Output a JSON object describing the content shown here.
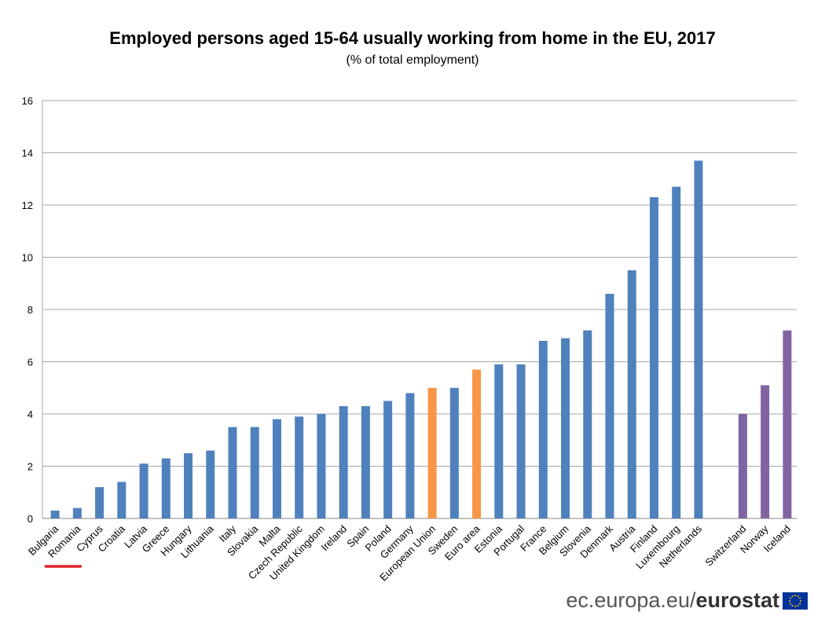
{
  "chart_data": {
    "type": "bar",
    "title": "Employed persons aged 15-64 usually working from home in the EU, 2017",
    "subtitle": "(% of total employment)",
    "xlabel": "",
    "ylabel": "",
    "ylim": [
      0,
      16
    ],
    "yticks": [
      0,
      2,
      4,
      6,
      8,
      10,
      12,
      14,
      16
    ],
    "grid": true,
    "categories": [
      "Bulgaria",
      "Romania",
      "Cyprus",
      "Croatia",
      "Latvia",
      "Greece",
      "Hungary",
      "Lithuania",
      "Italy",
      "Slovakia",
      "Malta",
      "Czech Republic",
      "United Kingdom",
      "Ireland",
      "Spain",
      "Poland",
      "Germany",
      "European Union",
      "Sweden",
      "Euro area",
      "Estonia",
      "Portugal",
      "France",
      "Belgium",
      "Slovenia",
      "Denmark",
      "Austria",
      "Finland",
      "Luxembourg",
      "Netherlands",
      "",
      "Switzerland",
      "Norway",
      "Iceland"
    ],
    "values": [
      0.3,
      0.4,
      1.2,
      1.4,
      2.1,
      2.3,
      2.5,
      2.6,
      3.5,
      3.5,
      3.8,
      3.9,
      4.0,
      4.3,
      4.3,
      4.5,
      4.8,
      5.0,
      5.0,
      5.7,
      5.9,
      5.9,
      6.8,
      6.9,
      7.2,
      8.6,
      9.5,
      12.3,
      12.7,
      13.7,
      null,
      4.0,
      5.1,
      7.2
    ],
    "groups": [
      "member",
      "member",
      "member",
      "member",
      "member",
      "member",
      "member",
      "member",
      "member",
      "member",
      "member",
      "member",
      "member",
      "member",
      "member",
      "member",
      "member",
      "aggregate",
      "member",
      "aggregate",
      "member",
      "member",
      "member",
      "member",
      "member",
      "member",
      "member",
      "member",
      "member",
      "member",
      "gap",
      "non-eu",
      "non-eu",
      "non-eu"
    ],
    "colors": {
      "member": "#4f81bd",
      "aggregate": "#f79646",
      "non-eu": "#8064a2",
      "grid": "#a6a6a6",
      "highlight": "#e3242b"
    },
    "highlighted_category": "Romania"
  },
  "source": {
    "prefix": "ec.europa.eu/",
    "brand": "eurostat"
  },
  "icons": {
    "flag": "eu-flag-icon"
  }
}
